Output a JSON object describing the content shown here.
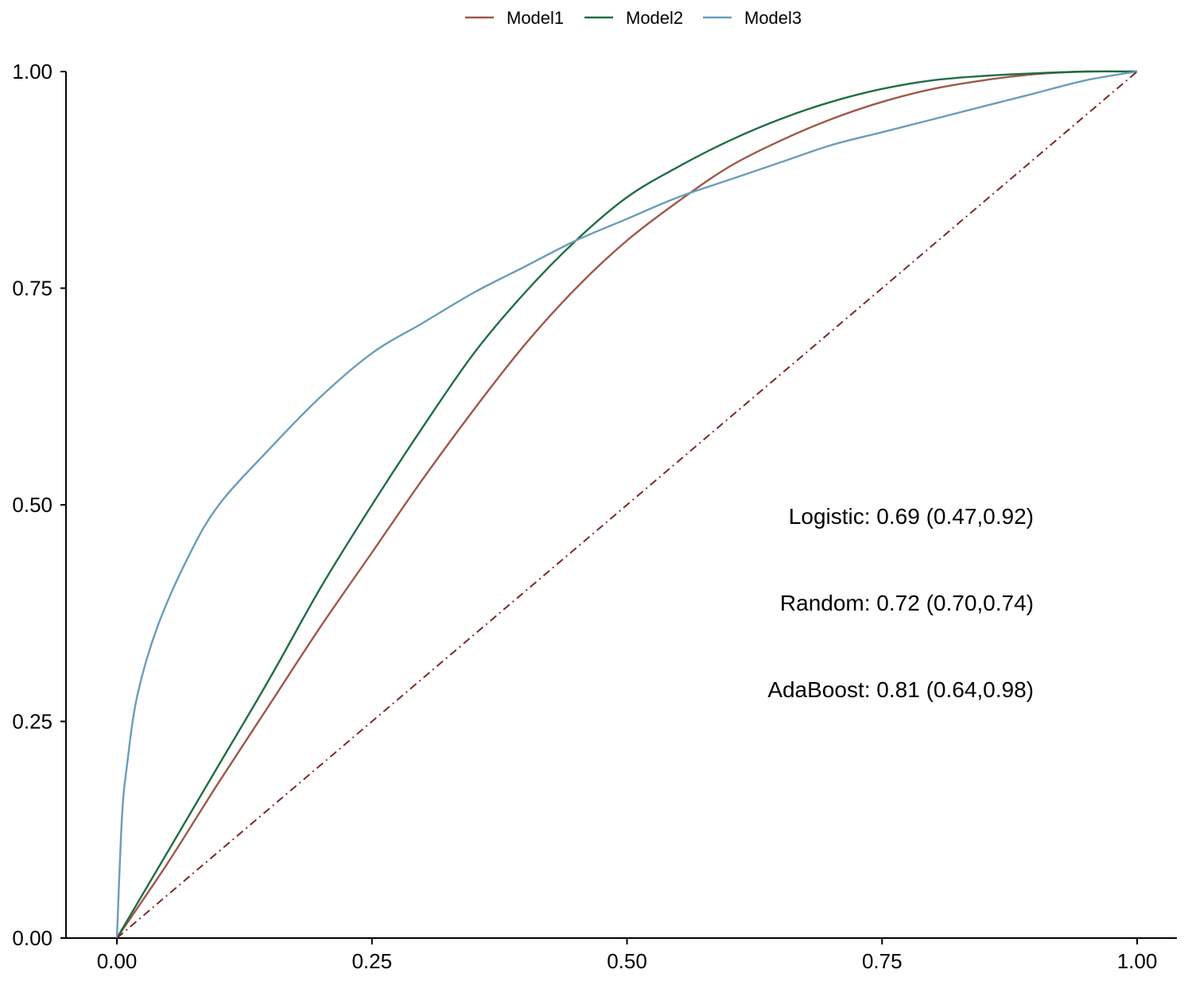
{
  "chart_data": {
    "type": "line",
    "title": "",
    "xlabel": "",
    "ylabel": "",
    "xlim": [
      0,
      1
    ],
    "ylim": [
      0,
      1
    ],
    "x_ticks": [
      "0.00",
      "0.25",
      "0.50",
      "0.75",
      "1.00"
    ],
    "y_ticks": [
      "0.00",
      "0.25",
      "0.50",
      "0.75",
      "1.00"
    ],
    "grid": false,
    "legend_position": "top-center",
    "series": [
      {
        "name": "Model1",
        "color": "#a0574b",
        "x": [
          0,
          0.05,
          0.1,
          0.15,
          0.2,
          0.25,
          0.3,
          0.35,
          0.4,
          0.45,
          0.5,
          0.55,
          0.6,
          0.65,
          0.7,
          0.75,
          0.8,
          0.85,
          0.9,
          0.95,
          1.0
        ],
        "y": [
          0,
          0.087,
          0.18,
          0.27,
          0.36,
          0.445,
          0.53,
          0.61,
          0.685,
          0.75,
          0.805,
          0.85,
          0.89,
          0.92,
          0.945,
          0.965,
          0.98,
          0.99,
          0.997,
          1.0,
          1.0
        ]
      },
      {
        "name": "Model2",
        "color": "#1f6e43",
        "x": [
          0,
          0.05,
          0.1,
          0.15,
          0.2,
          0.25,
          0.3,
          0.35,
          0.4,
          0.45,
          0.5,
          0.55,
          0.6,
          0.65,
          0.7,
          0.75,
          0.8,
          0.85,
          0.9,
          0.95,
          1.0
        ],
        "y": [
          0,
          0.1,
          0.2,
          0.3,
          0.405,
          0.5,
          0.59,
          0.675,
          0.745,
          0.805,
          0.855,
          0.89,
          0.92,
          0.945,
          0.965,
          0.98,
          0.99,
          0.995,
          0.998,
          1.0,
          1.0
        ]
      },
      {
        "name": "Model3",
        "color": "#6a9db9",
        "x": [
          0,
          0.005,
          0.01,
          0.02,
          0.04,
          0.07,
          0.1,
          0.15,
          0.2,
          0.25,
          0.3,
          0.35,
          0.4,
          0.45,
          0.5,
          0.55,
          0.6,
          0.65,
          0.7,
          0.75,
          0.8,
          0.85,
          0.9,
          0.95,
          1.0
        ],
        "y": [
          0,
          0.14,
          0.2,
          0.28,
          0.36,
          0.44,
          0.5,
          0.565,
          0.625,
          0.675,
          0.71,
          0.745,
          0.775,
          0.805,
          0.83,
          0.855,
          0.875,
          0.895,
          0.915,
          0.93,
          0.945,
          0.96,
          0.975,
          0.99,
          1.0
        ]
      },
      {
        "name": "",
        "color": "#7a2a22",
        "dash": "dotdash",
        "x": [
          0,
          1
        ],
        "y": [
          0,
          1
        ]
      }
    ],
    "annotations": [
      {
        "text": "Logistic: 0.69 (0.47,0.92)",
        "x": 0.9,
        "y": 0.487
      },
      {
        "text": "Random: 0.72 (0.70,0.74)",
        "x": 0.9,
        "y": 0.387
      },
      {
        "text": "AdaBoost: 0.81 (0.64,0.98)",
        "x": 0.9,
        "y": 0.287
      }
    ]
  }
}
